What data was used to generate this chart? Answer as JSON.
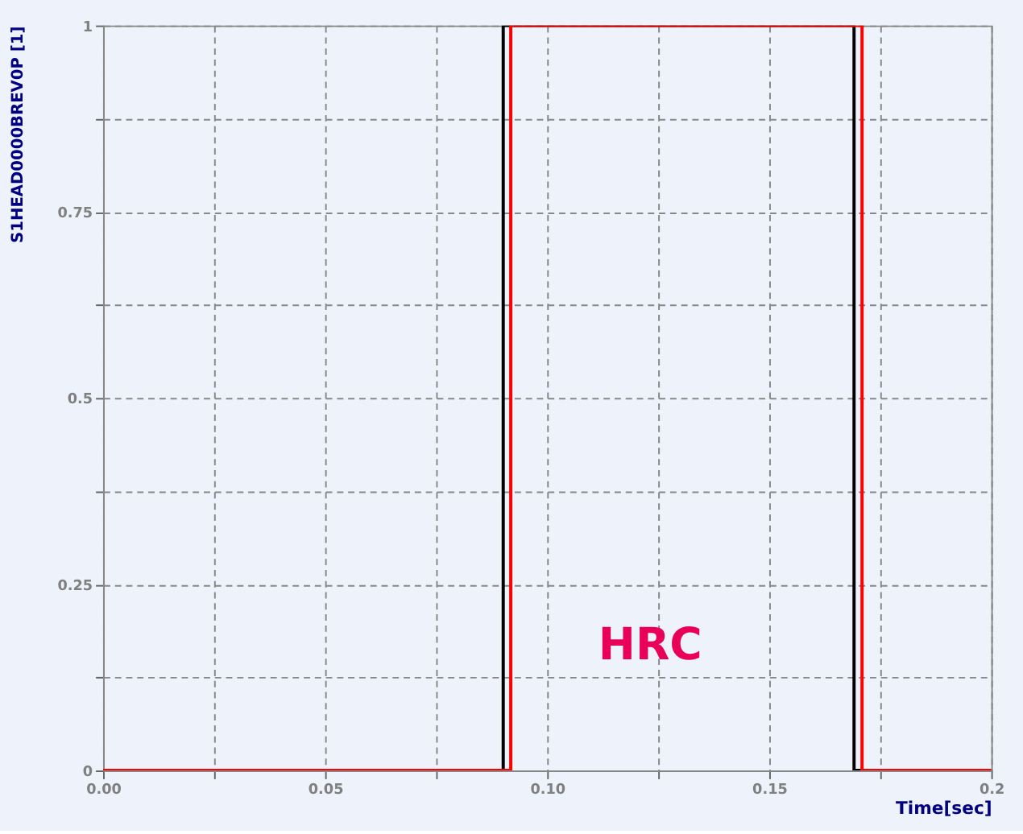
{
  "chart_data": {
    "type": "step",
    "ylabel": "S1HEAD0000BREV0P [1]",
    "xlabel": "Time[sec]",
    "xlim": [
      0,
      0.2
    ],
    "ylim": [
      0,
      1
    ],
    "xticks": [
      {
        "value": 0,
        "label": "0.00"
      },
      {
        "value": 0.025,
        "label": null
      },
      {
        "value": 0.05,
        "label": "0.05"
      },
      {
        "value": 0.075,
        "label": null
      },
      {
        "value": 0.1,
        "label": "0.10"
      },
      {
        "value": 0.125,
        "label": null
      },
      {
        "value": 0.15,
        "label": "0.15"
      },
      {
        "value": 0.175,
        "label": null
      },
      0.2
    ],
    "yticks": [
      0,
      {
        "value": 0.125,
        "label": null
      },
      0.25,
      {
        "value": 0.375,
        "label": null
      },
      0.5,
      {
        "value": 0.625,
        "label": null
      },
      0.75,
      {
        "value": 0.875,
        "label": null
      },
      1
    ],
    "grid": true,
    "legend": false,
    "line_style": "solid",
    "marker": "none",
    "series": [
      {
        "color": "#000000",
        "x": [
          0,
          0.0901,
          0.1691,
          0.2
        ],
        "values": [
          0,
          1,
          0,
          0
        ]
      },
      {
        "color": "#ff0000",
        "x": [
          0,
          0.0918,
          0.1709,
          0.2
        ],
        "values": [
          0,
          1,
          0,
          0
        ]
      }
    ],
    "annotations": [
      "HRC"
    ]
  }
}
